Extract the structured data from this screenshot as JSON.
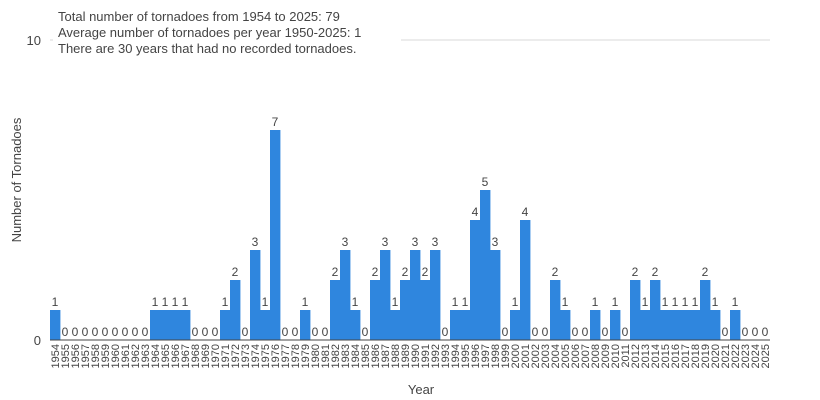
{
  "chart_data": {
    "type": "bar",
    "annotations": [
      "Total number of tornadoes from 1954 to 2025: 79",
      "Average number of tornadoes per year 1950-2025: 1",
      "There are 30 years that had no recorded tornadoes."
    ],
    "xlabel": "Year",
    "ylabel": "Number of Tornadoes",
    "ylim": [
      0,
      10
    ],
    "yticks": [
      "0",
      "10"
    ],
    "grid": true,
    "bar_color": "#2f86de",
    "categories": [
      "1954",
      "1955",
      "1956",
      "1957",
      "1958",
      "1959",
      "1960",
      "1961",
      "1962",
      "1963",
      "1964",
      "1965",
      "1966",
      "1967",
      "1968",
      "1969",
      "1970",
      "1971",
      "1972",
      "1973",
      "1974",
      "1975",
      "1976",
      "1977",
      "1978",
      "1979",
      "1980",
      "1981",
      "1982",
      "1983",
      "1984",
      "1985",
      "1986",
      "1987",
      "1988",
      "1989",
      "1990",
      "1991",
      "1992",
      "1993",
      "1994",
      "1995",
      "1996",
      "1997",
      "1998",
      "1999",
      "2000",
      "2001",
      "2002",
      "2003",
      "2004",
      "2005",
      "2006",
      "2007",
      "2008",
      "2009",
      "2010",
      "2011",
      "2012",
      "2013",
      "2014",
      "2015",
      "2016",
      "2017",
      "2018",
      "2019",
      "2020",
      "2021",
      "2022",
      "2023",
      "2024",
      "2025"
    ],
    "values": [
      1,
      0,
      0,
      0,
      0,
      0,
      0,
      0,
      0,
      0,
      1,
      1,
      1,
      1,
      0,
      0,
      0,
      1,
      2,
      0,
      3,
      1,
      7,
      0,
      0,
      1,
      0,
      0,
      2,
      3,
      1,
      0,
      2,
      3,
      1,
      2,
      3,
      2,
      3,
      0,
      1,
      1,
      4,
      5,
      3,
      0,
      1,
      4,
      0,
      0,
      2,
      1,
      0,
      0,
      1,
      0,
      1,
      0,
      2,
      1,
      2,
      1,
      1,
      1,
      1,
      2,
      1,
      0,
      1,
      0,
      0,
      0
    ]
  }
}
